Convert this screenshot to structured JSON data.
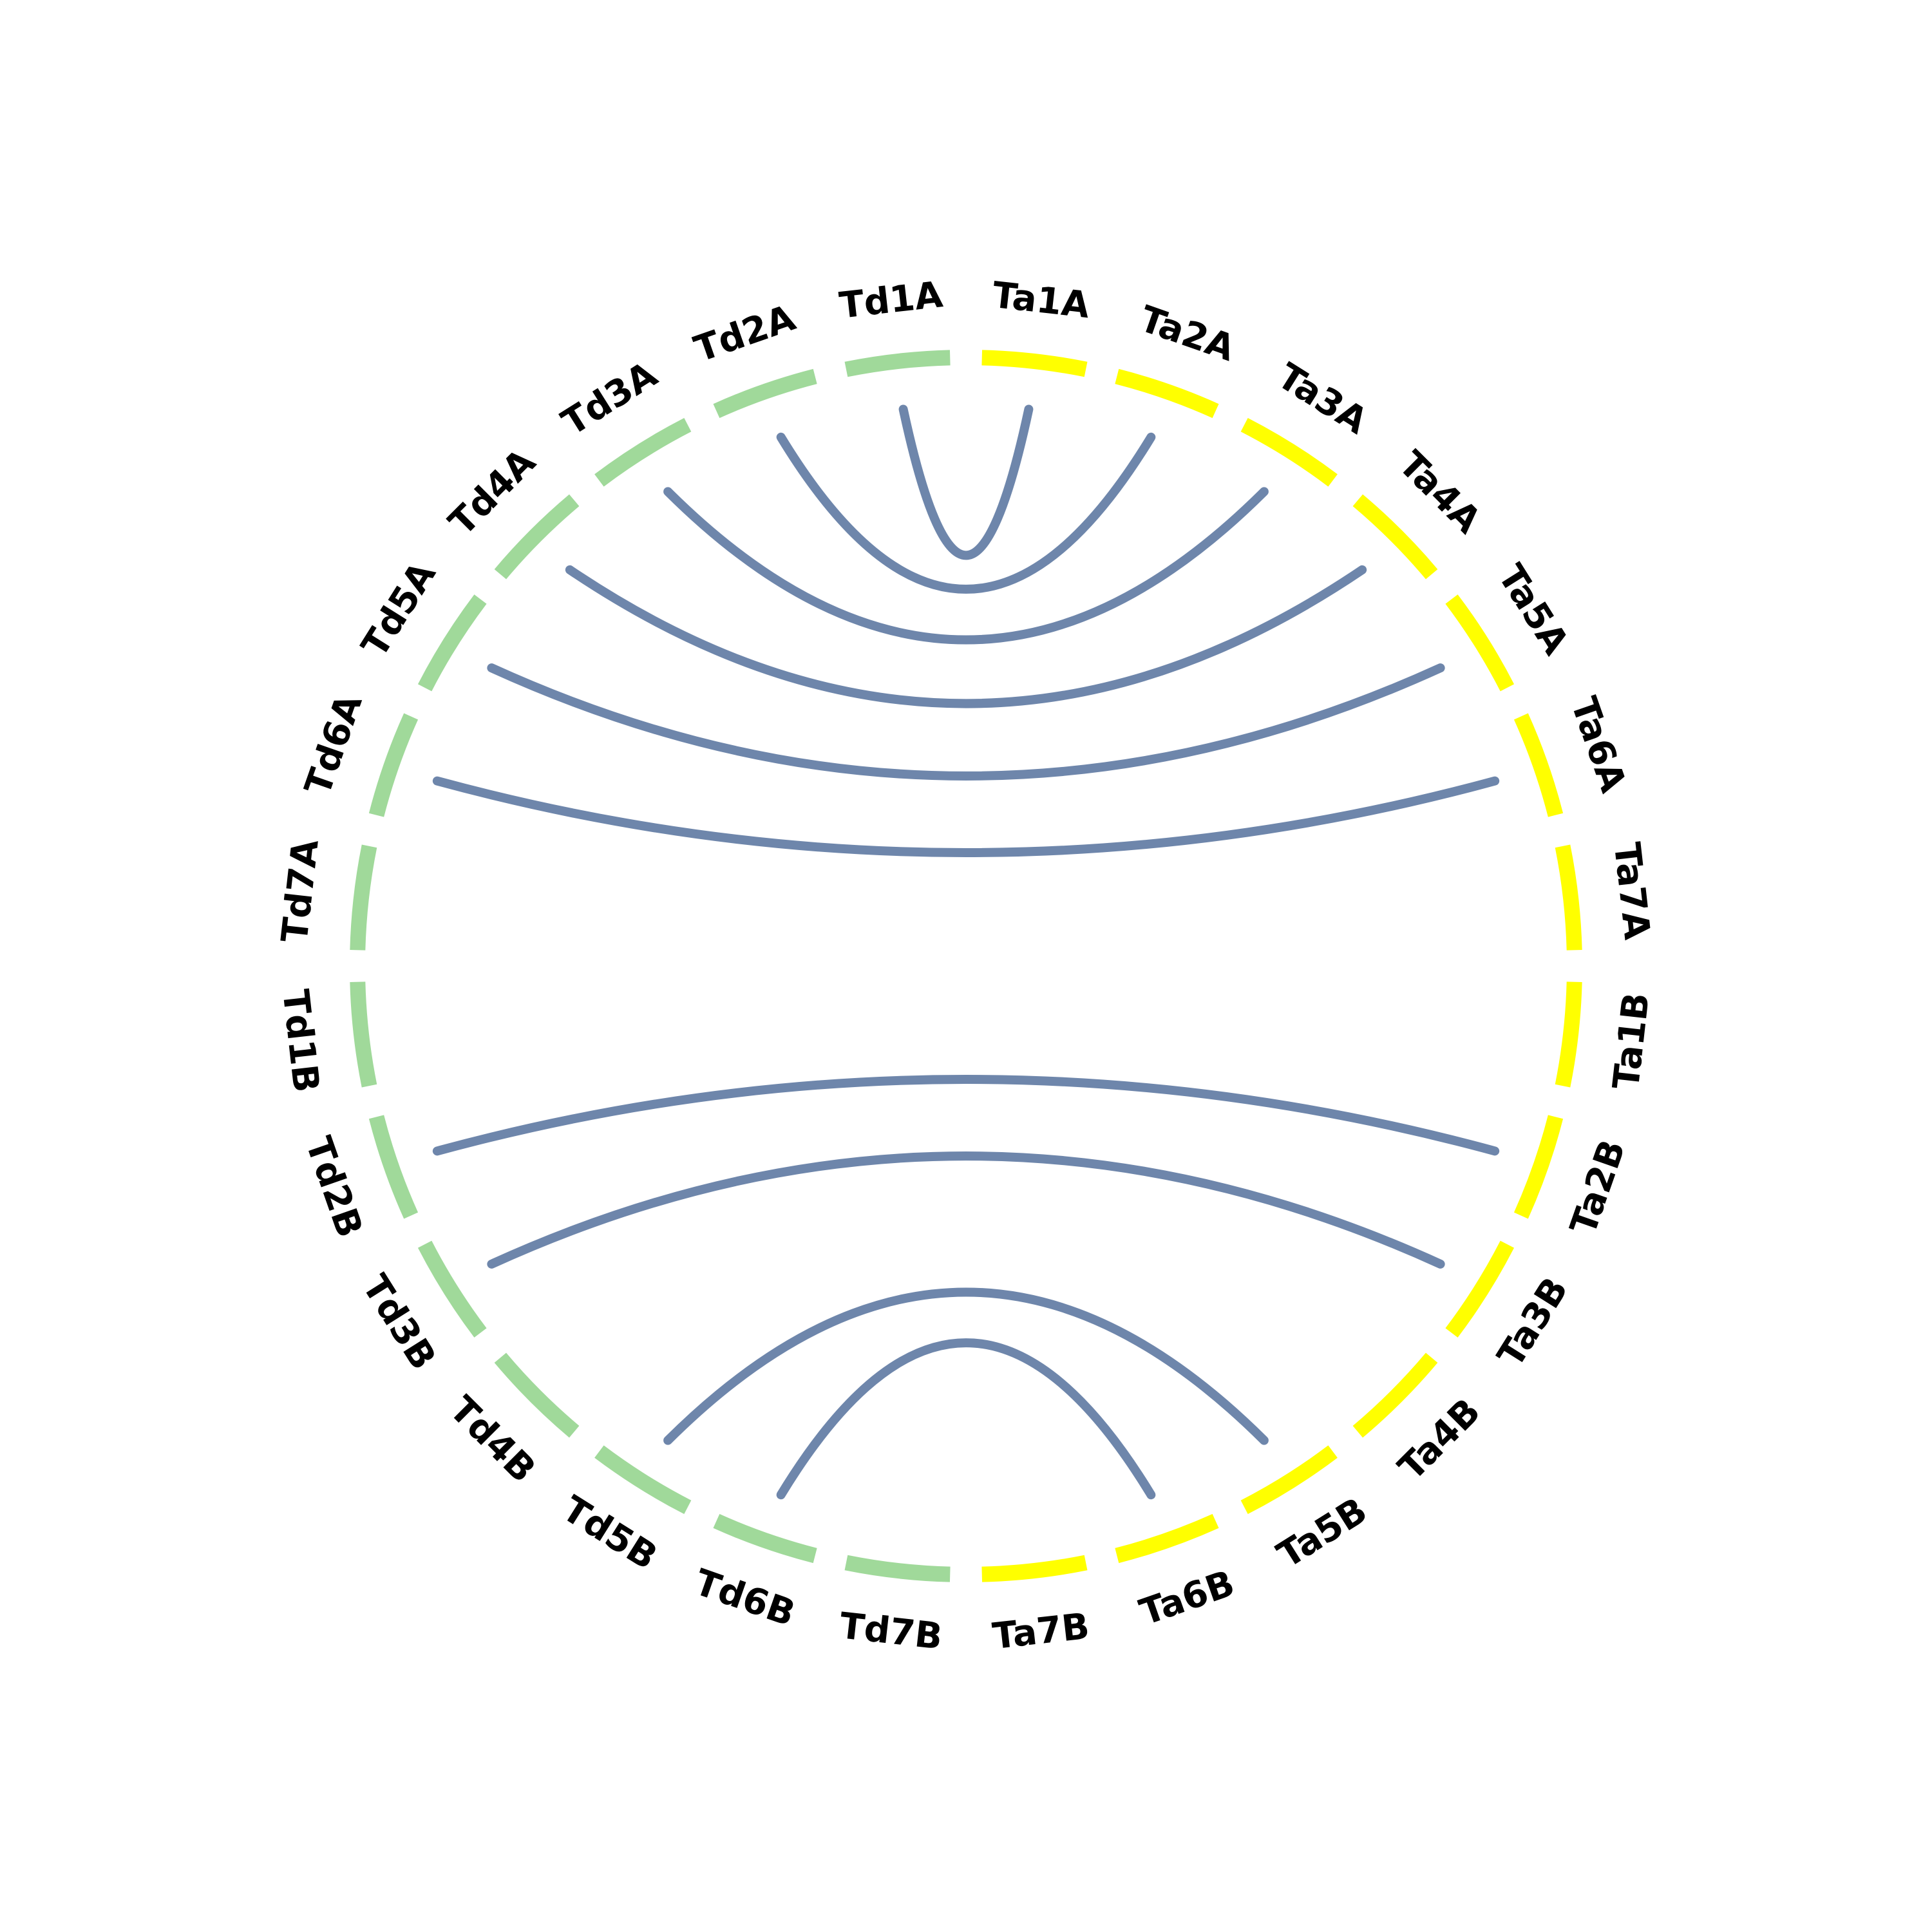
{
  "chart_data": {
    "type": "circos",
    "title": "",
    "colors": {
      "Td": "#a0d99a",
      "Ta": "#ffff00",
      "link": "#6680a6"
    },
    "segments": [
      {
        "name": "Ta1A",
        "genome": "Ta"
      },
      {
        "name": "Ta2A",
        "genome": "Ta"
      },
      {
        "name": "Ta3A",
        "genome": "Ta"
      },
      {
        "name": "Ta4A",
        "genome": "Ta"
      },
      {
        "name": "Ta5A",
        "genome": "Ta"
      },
      {
        "name": "Ta6A",
        "genome": "Ta"
      },
      {
        "name": "Ta7A",
        "genome": "Ta"
      },
      {
        "name": "Ta1B",
        "genome": "Ta"
      },
      {
        "name": "Ta2B",
        "genome": "Ta"
      },
      {
        "name": "Ta3B",
        "genome": "Ta"
      },
      {
        "name": "Ta4B",
        "genome": "Ta"
      },
      {
        "name": "Ta5B",
        "genome": "Ta"
      },
      {
        "name": "Ta6B",
        "genome": "Ta"
      },
      {
        "name": "Ta7B",
        "genome": "Ta"
      },
      {
        "name": "Td7B",
        "genome": "Td"
      },
      {
        "name": "Td6B",
        "genome": "Td"
      },
      {
        "name": "Td5B",
        "genome": "Td"
      },
      {
        "name": "Td4B",
        "genome": "Td"
      },
      {
        "name": "Td3B",
        "genome": "Td"
      },
      {
        "name": "Td2B",
        "genome": "Td"
      },
      {
        "name": "Td1B",
        "genome": "Td"
      },
      {
        "name": "Td7A",
        "genome": "Td"
      },
      {
        "name": "Td6A",
        "genome": "Td"
      },
      {
        "name": "Td5A",
        "genome": "Td"
      },
      {
        "name": "Td4A",
        "genome": "Td"
      },
      {
        "name": "Td3A",
        "genome": "Td"
      },
      {
        "name": "Td2A",
        "genome": "Td"
      },
      {
        "name": "Td1A",
        "genome": "Td"
      }
    ],
    "links": [
      {
        "from": "Td1A",
        "to": "Ta1A"
      },
      {
        "from": "Td2A",
        "to": "Ta2A"
      },
      {
        "from": "Td3A",
        "to": "Ta3A"
      },
      {
        "from": "Td4A",
        "to": "Ta4A"
      },
      {
        "from": "Td5A",
        "to": "Ta5A"
      },
      {
        "from": "Td6A",
        "to": "Ta6A"
      },
      {
        "from": "Td2B",
        "to": "Ta2B"
      },
      {
        "from": "Td3B",
        "to": "Ta3B"
      },
      {
        "from": "Td5B",
        "to": "Ta5B"
      },
      {
        "from": "Td6B",
        "to": "Ta6B"
      }
    ]
  }
}
